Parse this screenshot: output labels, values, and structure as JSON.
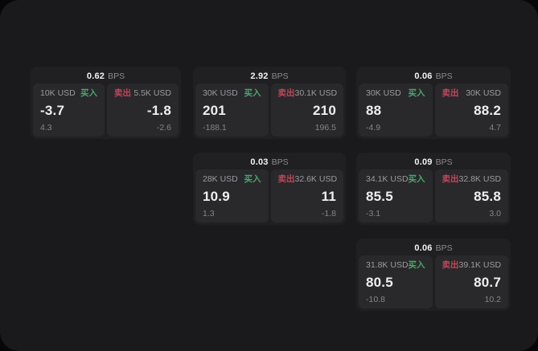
{
  "units": {
    "bps": "BPS"
  },
  "labels": {
    "buy": "买入",
    "sell": "卖出"
  },
  "colors": {
    "background": "#070708",
    "panel": "#1a1a1c",
    "card": "#202022",
    "tile": "#29292b",
    "buy_green": "#4aa66e",
    "sell_red": "#c24659",
    "value_text": "#efeff0",
    "muted_text": "#9b9b9e",
    "dim_text": "#85858a"
  },
  "cards": [
    {
      "bps": "0.62",
      "buy": {
        "amount": "10K USD",
        "price": "-3.7",
        "delta": "4.3"
      },
      "sell": {
        "amount": "5.5K USD",
        "price": "-1.8",
        "delta": "-2.6"
      }
    },
    {
      "bps": "2.92",
      "buy": {
        "amount": "30K USD",
        "price": "201",
        "delta": "-188.1"
      },
      "sell": {
        "amount": "30.1K USD",
        "price": "210",
        "delta": "196.5"
      }
    },
    {
      "bps": "0.06",
      "buy": {
        "amount": "30K USD",
        "price": "88",
        "delta": "-4.9"
      },
      "sell": {
        "amount": "30K USD",
        "price": "88.2",
        "delta": "4.7"
      }
    },
    {
      "bps": "0.03",
      "buy": {
        "amount": "28K USD",
        "price": "10.9",
        "delta": "1.3"
      },
      "sell": {
        "amount": "32.6K USD",
        "price": "11",
        "delta": "-1.8"
      }
    },
    {
      "bps": "0.09",
      "buy": {
        "amount": "34.1K USD",
        "price": "85.5",
        "delta": "-3.1"
      },
      "sell": {
        "amount": "32.8K USD",
        "price": "85.8",
        "delta": "3.0"
      }
    },
    {
      "bps": "0.06",
      "buy": {
        "amount": "31.8K USD",
        "price": "80.5",
        "delta": "-10.8"
      },
      "sell": {
        "amount": "39.1K USD",
        "price": "80.7",
        "delta": "10.2"
      }
    }
  ]
}
